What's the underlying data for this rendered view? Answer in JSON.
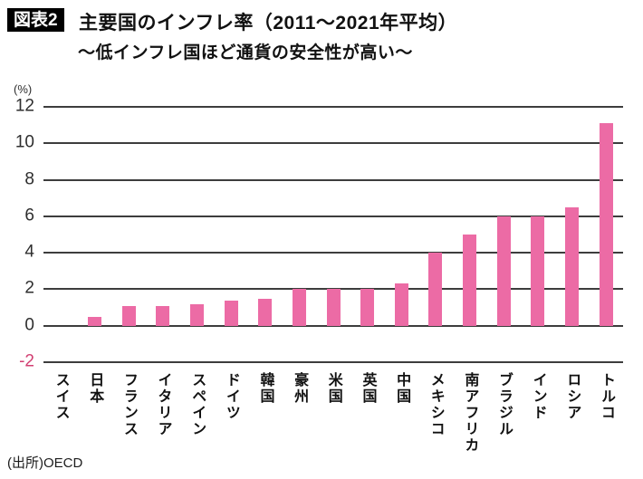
{
  "header": {
    "badge": "図表2",
    "title": "主要国のインフレ率（2011〜2021年平均）",
    "subtitle": "〜低インフレ国ほど通貨の安全性が高い〜"
  },
  "chart_data": {
    "type": "bar",
    "title": "主要国のインフレ率（2011〜2021年平均）",
    "subtitle": "〜低インフレ国ほど通貨の安全性が高い〜",
    "unit_label": "(%)",
    "categories": [
      "スイス",
      "日本",
      "フランス",
      "イタリア",
      "スペイン",
      "ドイツ",
      "韓国",
      "豪州",
      "米国",
      "英国",
      "中国",
      "メキシコ",
      "南アフリカ",
      "ブラジル",
      "インド",
      "ロシア",
      "トルコ"
    ],
    "values": [
      0,
      0.5,
      1.1,
      1.1,
      1.2,
      1.4,
      1.5,
      2.0,
      2.0,
      2.0,
      2.3,
      4.0,
      5.0,
      6.0,
      6.0,
      6.5,
      11.1
    ],
    "ylim": [
      -2,
      12
    ],
    "yticks": [
      12,
      10,
      8,
      6,
      4,
      2,
      0,
      -2
    ],
    "grid": true,
    "legend_position": "none",
    "bar_color": "#ec6ba5",
    "gridline_color": "#3d3d3d",
    "tick_color": "#2e2e2e",
    "negative_tick_color": "#d23f72"
  },
  "footer": {
    "source": "(出所)OECD"
  }
}
